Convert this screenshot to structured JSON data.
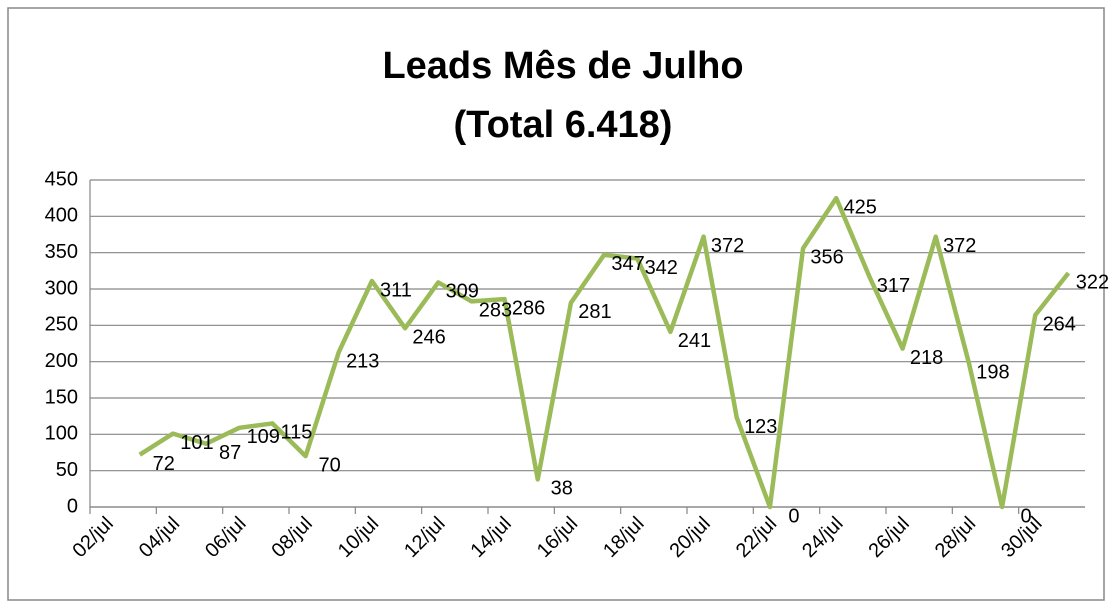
{
  "chart_data": {
    "type": "line",
    "title": "Leads Mês de Julho",
    "subtitle": "(Total 6.418)",
    "categories": [
      "02/jul",
      null,
      "04/jul",
      null,
      "06/jul",
      null,
      "08/jul",
      null,
      "10/jul",
      null,
      "12/jul",
      null,
      "14/jul",
      null,
      "16/jul",
      null,
      "18/jul",
      null,
      "20/jul",
      null,
      "22/jul",
      null,
      "24/jul",
      null,
      "26/jul",
      null,
      "28/jul",
      null,
      "30/jul",
      null
    ],
    "series": [
      {
        "name": "Leads",
        "color": "#9bbb59",
        "values": [
          null,
          72,
          101,
          87,
          109,
          115,
          70,
          213,
          311,
          246,
          309,
          283,
          286,
          38,
          281,
          347,
          342,
          241,
          372,
          123,
          0,
          356,
          425,
          317,
          218,
          372,
          198,
          0,
          264,
          322
        ]
      }
    ],
    "ylim": [
      0,
      450
    ],
    "yticks": [
      0,
      50,
      100,
      150,
      200,
      250,
      300,
      350,
      400,
      450
    ],
    "grid": true
  }
}
